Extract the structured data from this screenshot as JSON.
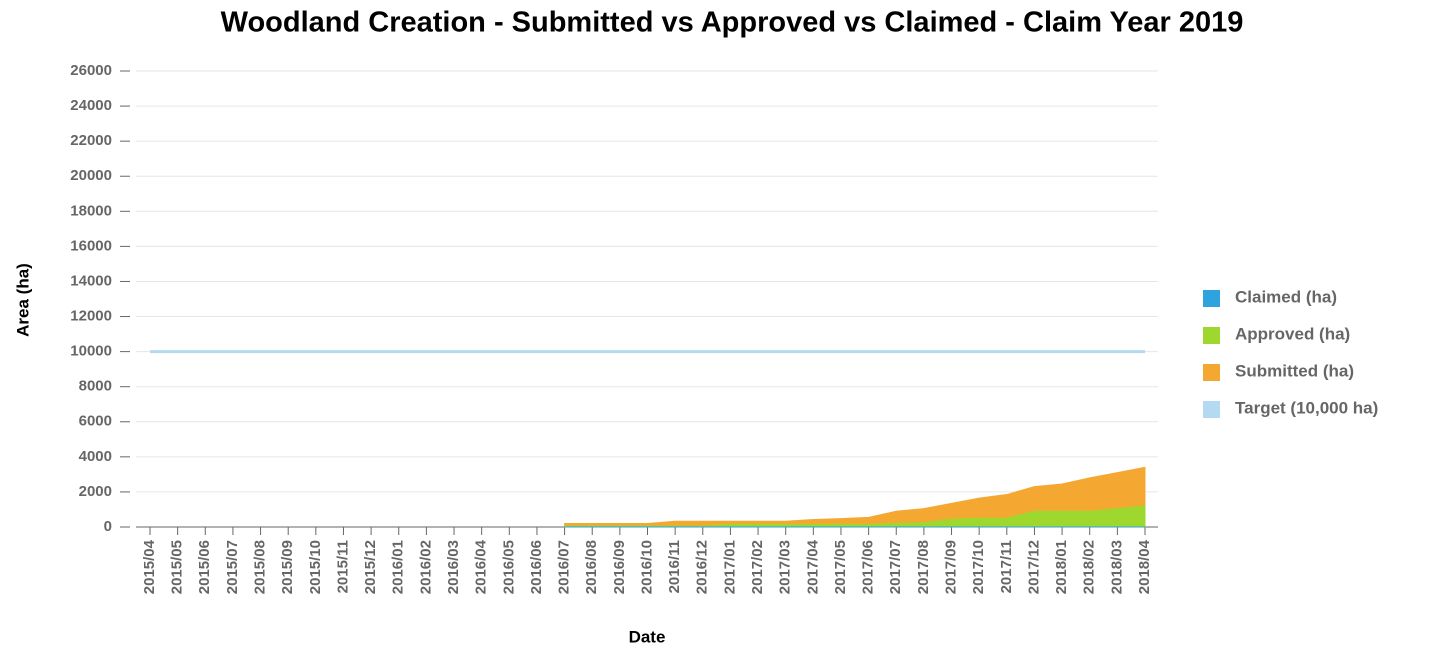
{
  "chart_data": {
    "type": "area",
    "title": "Woodland Creation - Submitted vs Approved vs Claimed - Claim Year 2019",
    "xlabel": "Date",
    "ylabel": "Area (ha)",
    "categories": [
      "2015/04",
      "2015/05",
      "2015/06",
      "2015/07",
      "2015/08",
      "2015/09",
      "2015/10",
      "2015/11",
      "2015/12",
      "2016/01",
      "2016/02",
      "2016/03",
      "2016/04",
      "2016/05",
      "2016/06",
      "2016/07",
      "2016/08",
      "2016/09",
      "2016/10",
      "2016/11",
      "2016/12",
      "2017/01",
      "2017/02",
      "2017/03",
      "2017/04",
      "2017/05",
      "2017/06",
      "2017/07",
      "2017/08",
      "2017/09",
      "2017/10",
      "2017/11",
      "2017/12",
      "2018/01",
      "2018/02",
      "2018/03",
      "2018/04"
    ],
    "series": [
      {
        "name": "Claimed (ha)",
        "color": "#2fa3de",
        "values": [
          null,
          null,
          null,
          null,
          null,
          null,
          null,
          null,
          null,
          null,
          null,
          null,
          null,
          null,
          null,
          0,
          0,
          0,
          0,
          0,
          0,
          0,
          0,
          0,
          0,
          0,
          0,
          0,
          0,
          0,
          0,
          0,
          0,
          0,
          0,
          0,
          0
        ]
      },
      {
        "name": "Approved (ha)",
        "color": "#9ed82e",
        "values": [
          null,
          null,
          null,
          null,
          null,
          null,
          null,
          null,
          null,
          null,
          null,
          null,
          null,
          null,
          null,
          50,
          50,
          50,
          50,
          50,
          50,
          150,
          150,
          150,
          150,
          150,
          150,
          200,
          250,
          450,
          500,
          500,
          900,
          900,
          900,
          1050,
          1200
        ]
      },
      {
        "name": "Submitted (ha)",
        "color": "#f5a831",
        "values": [
          null,
          null,
          null,
          null,
          null,
          null,
          null,
          null,
          null,
          null,
          null,
          null,
          null,
          null,
          null,
          200,
          200,
          200,
          200,
          330,
          330,
          330,
          330,
          330,
          430,
          480,
          550,
          900,
          1050,
          1350,
          1650,
          1850,
          2300,
          2450,
          2800,
          3100,
          3400
        ]
      },
      {
        "name": "Target (10,000 ha)",
        "color": "#b3daf0",
        "values": [
          10000,
          10000,
          10000,
          10000,
          10000,
          10000,
          10000,
          10000,
          10000,
          10000,
          10000,
          10000,
          10000,
          10000,
          10000,
          10000,
          10000,
          10000,
          10000,
          10000,
          10000,
          10000,
          10000,
          10000,
          10000,
          10000,
          10000,
          10000,
          10000,
          10000,
          10000,
          10000,
          10000,
          10000,
          10000,
          10000,
          10000
        ]
      }
    ],
    "ylim": [
      0,
      26000
    ],
    "yticks": [
      0,
      2000,
      4000,
      6000,
      8000,
      10000,
      12000,
      14000,
      16000,
      18000,
      20000,
      22000,
      24000,
      26000
    ],
    "grid": true,
    "legend": "right"
  }
}
